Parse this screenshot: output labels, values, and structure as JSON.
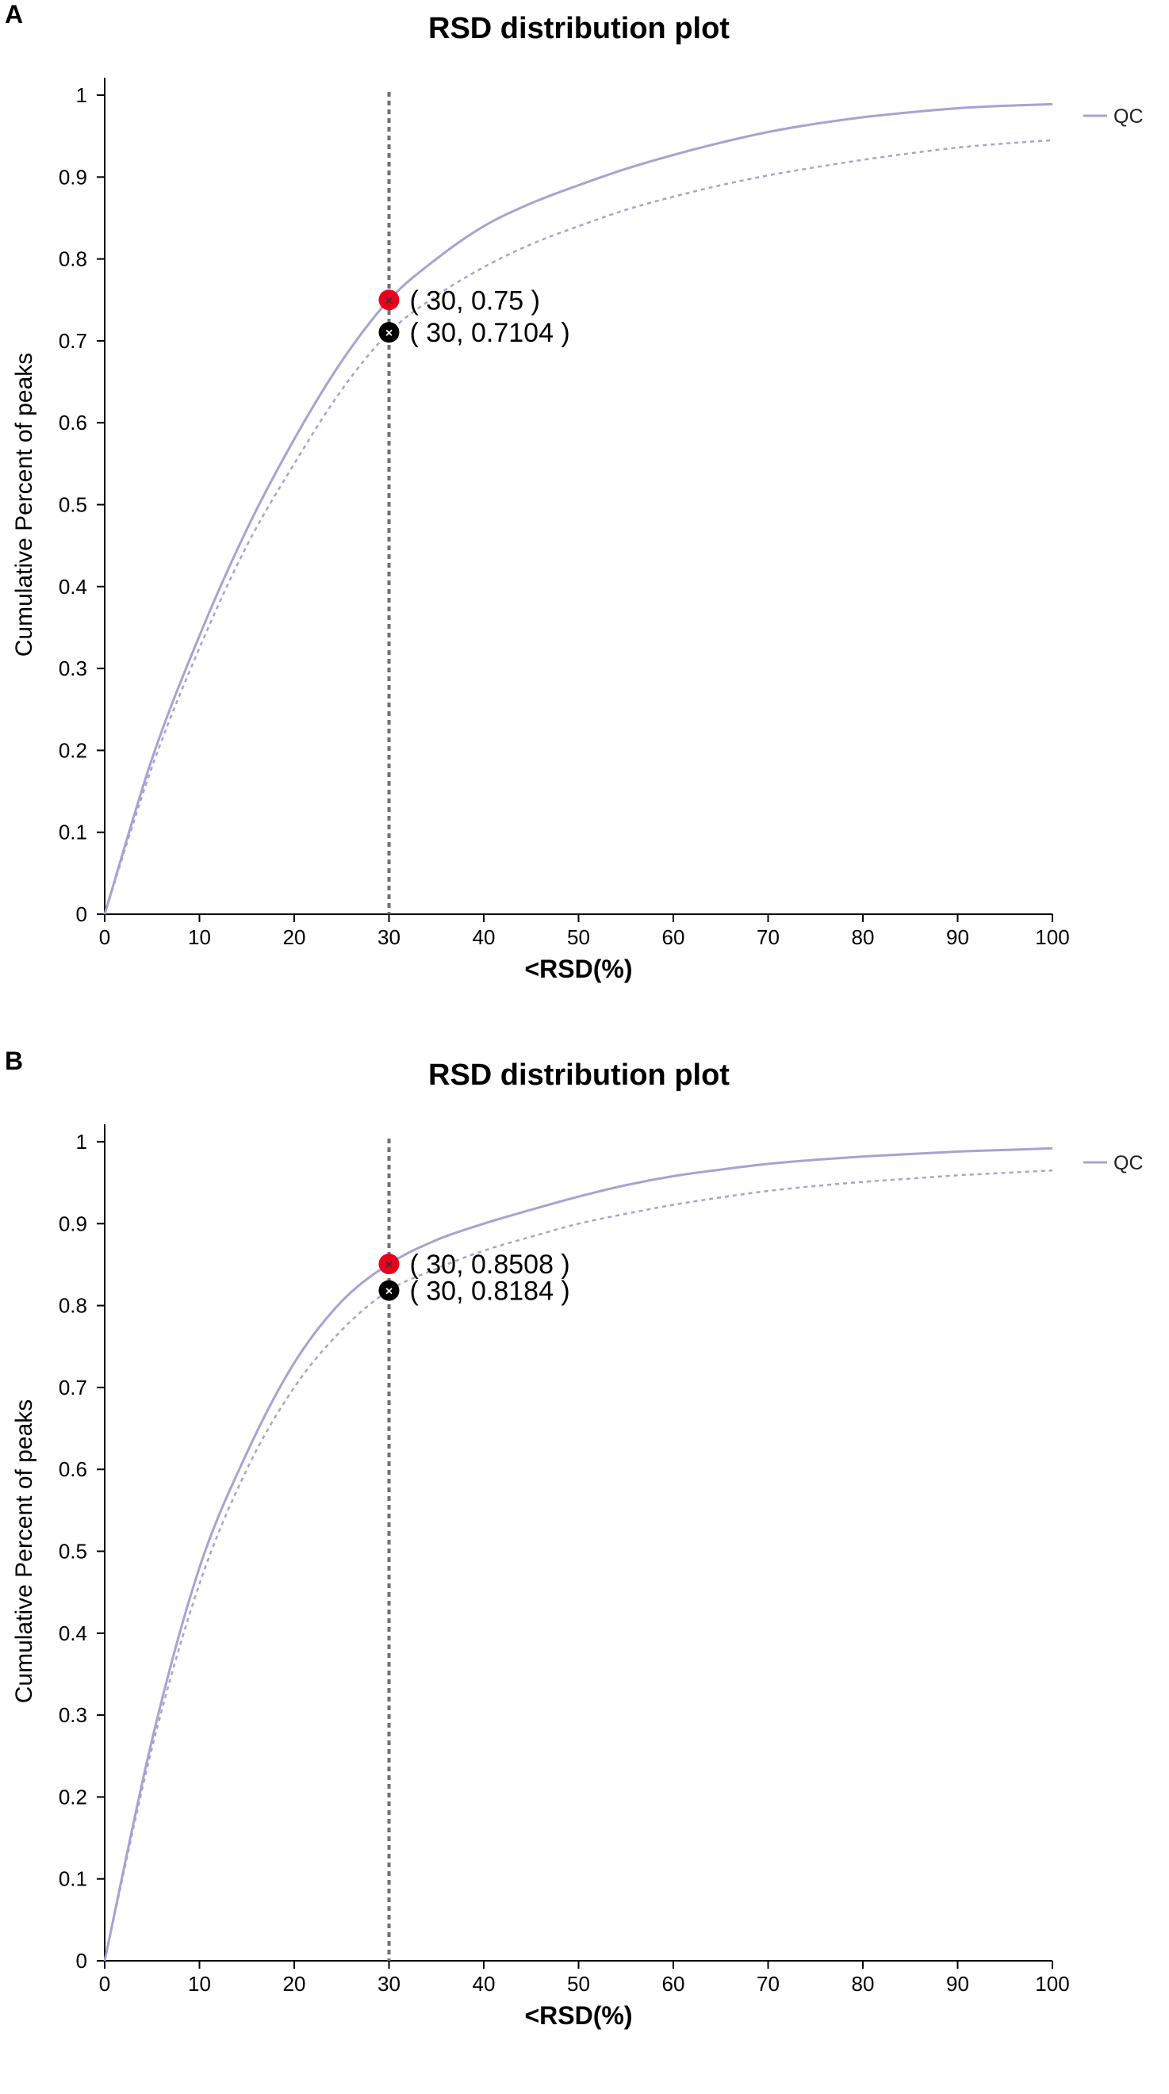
{
  "chart_data": [
    {
      "panel_label": "A",
      "type": "line",
      "title": "RSD distribution plot",
      "xlabel": "<RSD(%)",
      "ylabel": "Cumulative Percent of peaks",
      "xlim": [
        0,
        100
      ],
      "ylim": [
        0,
        1
      ],
      "x_ticks": [
        "0",
        "10",
        "20",
        "30",
        "40",
        "50",
        "60",
        "70",
        "80",
        "90",
        "100"
      ],
      "y_ticks": [
        "0",
        "0.1",
        "0.2",
        "0.3",
        "0.4",
        "0.5",
        "0.6",
        "0.7",
        "0.8",
        "0.9",
        "1"
      ],
      "legend": {
        "label": "QC",
        "position": "top-right"
      },
      "colors": {
        "series": "#a8a2d2",
        "threshold": "#707070",
        "marker_red": "#e8001c",
        "marker_black": "#000000"
      },
      "threshold_x": 30,
      "series": [
        {
          "name": "QC",
          "style": "solid",
          "x": [
            0,
            5,
            10,
            15,
            20,
            25,
            30,
            35,
            40,
            45,
            50,
            55,
            60,
            65,
            70,
            75,
            80,
            85,
            90,
            95,
            100
          ],
          "values": [
            0,
            0.19,
            0.34,
            0.47,
            0.58,
            0.675,
            0.75,
            0.8,
            0.84,
            0.868,
            0.89,
            0.91,
            0.927,
            0.942,
            0.955,
            0.965,
            0.973,
            0.979,
            0.984,
            0.987,
            0.989
          ]
        },
        {
          "name": "QC (dotted)",
          "style": "dotted",
          "x": [
            0,
            5,
            10,
            15,
            20,
            25,
            30,
            35,
            40,
            45,
            50,
            55,
            60,
            65,
            70,
            75,
            80,
            85,
            90,
            95,
            100
          ],
          "values": [
            0,
            0.18,
            0.325,
            0.45,
            0.55,
            0.64,
            0.7104,
            0.755,
            0.79,
            0.818,
            0.84,
            0.86,
            0.876,
            0.89,
            0.902,
            0.912,
            0.921,
            0.929,
            0.936,
            0.941,
            0.945
          ]
        }
      ],
      "annotations": [
        {
          "x": 30,
          "y": 0.75,
          "color": "red",
          "label": "( 30, 0.75 )"
        },
        {
          "x": 30,
          "y": 0.7104,
          "color": "black",
          "label": "( 30, 0.7104 )"
        }
      ]
    },
    {
      "panel_label": "B",
      "type": "line",
      "title": "RSD distribution plot",
      "xlabel": "<RSD(%)",
      "ylabel": "Cumulative Percent of peaks",
      "xlim": [
        0,
        100
      ],
      "ylim": [
        0,
        1
      ],
      "x_ticks": [
        "0",
        "10",
        "20",
        "30",
        "40",
        "50",
        "60",
        "70",
        "80",
        "90",
        "100"
      ],
      "y_ticks": [
        "0",
        "0.1",
        "0.2",
        "0.3",
        "0.4",
        "0.5",
        "0.6",
        "0.7",
        "0.8",
        "0.9",
        "1"
      ],
      "legend": {
        "label": "QC",
        "position": "top-right"
      },
      "colors": {
        "series": "#a8a2d2",
        "threshold": "#707070",
        "marker_red": "#e8001c",
        "marker_black": "#000000"
      },
      "threshold_x": 30,
      "series": [
        {
          "name": "QC",
          "style": "solid",
          "x": [
            0,
            5,
            10,
            15,
            20,
            25,
            30,
            35,
            40,
            45,
            50,
            55,
            60,
            65,
            70,
            75,
            80,
            85,
            90,
            95,
            100
          ],
          "values": [
            0,
            0.27,
            0.48,
            0.62,
            0.73,
            0.805,
            0.8508,
            0.88,
            0.9,
            0.917,
            0.933,
            0.947,
            0.958,
            0.966,
            0.973,
            0.978,
            0.982,
            0.985,
            0.988,
            0.99,
            0.992
          ]
        },
        {
          "name": "QC (dotted)",
          "style": "dotted",
          "x": [
            0,
            5,
            10,
            15,
            20,
            25,
            30,
            35,
            40,
            45,
            50,
            55,
            60,
            65,
            70,
            75,
            80,
            85,
            90,
            95,
            100
          ],
          "values": [
            0,
            0.26,
            0.46,
            0.6,
            0.7,
            0.77,
            0.8184,
            0.845,
            0.867,
            0.884,
            0.9,
            0.912,
            0.923,
            0.932,
            0.94,
            0.946,
            0.951,
            0.955,
            0.959,
            0.962,
            0.965
          ]
        }
      ],
      "annotations": [
        {
          "x": 30,
          "y": 0.8508,
          "color": "red",
          "label": "( 30, 0.8508 )"
        },
        {
          "x": 30,
          "y": 0.8184,
          "color": "black",
          "label": "( 30, 0.8184 )"
        }
      ]
    }
  ]
}
